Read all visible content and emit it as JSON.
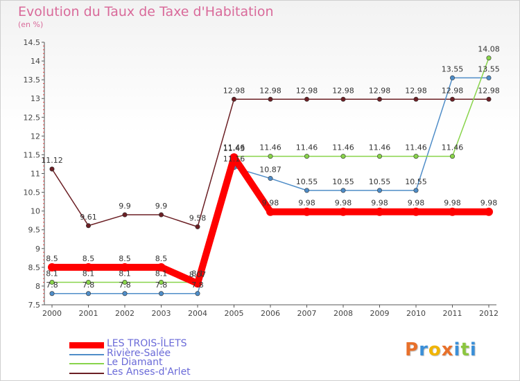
{
  "title": "Evolution du Taux de Taxe d'Habitation",
  "subtitle": "(en %)",
  "brand": "Proxiti",
  "chart_data": {
    "type": "line",
    "title": "Evolution du Taux de Taxe d'Habitation",
    "ylabel": "(en %)",
    "xlabel": "",
    "ylim": [
      7.5,
      14.5
    ],
    "yticks": [
      "7.5",
      "8",
      "8.5",
      "9",
      "9.5",
      "10",
      "10.5",
      "11",
      "11.5",
      "12",
      "12.5",
      "13",
      "13.5",
      "14",
      "14.5"
    ],
    "x": [
      "2000",
      "2001",
      "2002",
      "2003",
      "2004",
      "2005",
      "2006",
      "2007",
      "2008",
      "2009",
      "2010",
      "2011",
      "2012"
    ],
    "grid": "none",
    "legend_position": "bottom-left",
    "series": [
      {
        "name": "LES TROIS-ÎLETS",
        "color": "#ff0000",
        "values": [
          8.5,
          8.5,
          8.5,
          8.5,
          8.07,
          11.43,
          9.98,
          9.98,
          9.98,
          9.98,
          9.98,
          9.98,
          9.98
        ],
        "labels": [
          "8.5",
          "8.5",
          "8.5",
          "8.5",
          "8.07",
          "11.43",
          "9.98",
          "9.98",
          "9.98",
          "9.98",
          "9.98",
          "9.98",
          "9.98"
        ]
      },
      {
        "name": "Rivière-Salée",
        "color": "#4f8dc8",
        "values": [
          7.8,
          7.8,
          7.8,
          7.8,
          7.8,
          11.16,
          10.87,
          10.55,
          10.55,
          10.55,
          10.55,
          13.55,
          13.55
        ],
        "labels": [
          "7.8",
          "7.8",
          "7.8",
          "7.8",
          "7.8",
          "11.16",
          "10.87",
          "10.55",
          "10.55",
          "10.55",
          "10.55",
          "13.55",
          "13.55"
        ]
      },
      {
        "name": "Le Diamant",
        "color": "#88d44a",
        "values": [
          8.1,
          8.1,
          8.1,
          8.1,
          8.1,
          11.46,
          11.46,
          11.46,
          11.46,
          11.46,
          11.46,
          11.46,
          14.08
        ],
        "labels": [
          "8.1",
          "8.1",
          "8.1",
          "8.1",
          "8.1",
          "11.46",
          "11.46",
          "11.46",
          "11.46",
          "11.46",
          "11.46",
          "11.46",
          "14.08"
        ]
      },
      {
        "name": "Les Anses-d'Arlet",
        "color": "#6b1f24",
        "values": [
          11.12,
          9.61,
          9.9,
          9.9,
          9.58,
          12.98,
          12.98,
          12.98,
          12.98,
          12.98,
          12.98,
          12.98,
          12.98
        ],
        "labels": [
          "11.12",
          "9.61",
          "9.9",
          "9.9",
          "9.58",
          "12.98",
          "12.98",
          "12.98",
          "12.98",
          "12.98",
          "12.98",
          "12.98",
          "12.98"
        ]
      }
    ]
  }
}
